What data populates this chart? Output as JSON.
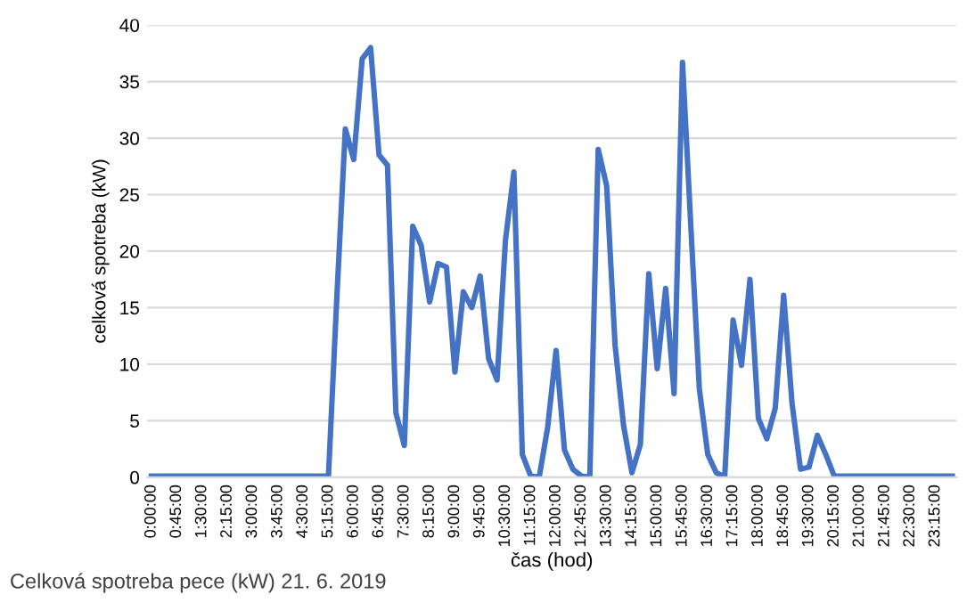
{
  "chart_data": {
    "type": "line",
    "ylabel": "celková spotreba (kW)",
    "xlabel": "čas (hod)",
    "annotations": [
      "Celková spotreba pece (kW) 21. 6. 2019"
    ],
    "categories": [
      "0:00:00",
      null,
      null,
      "0:45:00",
      null,
      null,
      "1:30:00",
      null,
      null,
      "2:15:00",
      null,
      null,
      "3:00:00",
      null,
      null,
      "3:45:00",
      null,
      null,
      "4:30:00",
      null,
      null,
      "5:15:00",
      null,
      null,
      "6:00:00",
      null,
      null,
      "6:45:00",
      null,
      null,
      "7:30:00",
      null,
      null,
      "8:15:00",
      null,
      null,
      "9:00:00",
      null,
      null,
      "9:45:00",
      null,
      null,
      "10:30:00",
      null,
      null,
      "11:15:00",
      null,
      null,
      "12:00:00",
      null,
      null,
      "12:45:00",
      null,
      null,
      "13:30:00",
      null,
      null,
      "14:15:00",
      null,
      null,
      "15:00:00",
      null,
      null,
      "15:45:00",
      null,
      null,
      "16:30:00",
      null,
      null,
      "17:15:00",
      null,
      null,
      "18:00:00",
      null,
      null,
      "18:45:00",
      null,
      null,
      "19:30:00",
      null,
      null,
      "20:15:00",
      null,
      null,
      "21:00:00",
      null,
      null,
      "21:45:00",
      null,
      null,
      "22:30:00",
      null,
      null,
      "23:15:00",
      null,
      null
    ],
    "series": [
      {
        "color": "#4472c4",
        "values": [
          0.1,
          0.1,
          0.1,
          0.1,
          0.1,
          0.1,
          0.1,
          0.1,
          0.1,
          0.1,
          0.1,
          0.1,
          0.1,
          0.1,
          0.1,
          0.1,
          0.1,
          0.1,
          0.1,
          0.1,
          0.1,
          0.1,
          16,
          30.8,
          28.1,
          37,
          38,
          28.5,
          27.6,
          5.7,
          2.8,
          22.2,
          20.5,
          15.5,
          18.9,
          18.6,
          9.3,
          16.4,
          15,
          17.8,
          10.5,
          8.6,
          21,
          27,
          2,
          0.1,
          0,
          4.4,
          11.2,
          2.4,
          0.7,
          0.1,
          0,
          29,
          25.8,
          11.7,
          4.6,
          0.4,
          2.9,
          18,
          9.6,
          16.7,
          7.4,
          36.7,
          22,
          7.8,
          2,
          0.4,
          0,
          13.9,
          9.9,
          17.5,
          5.2,
          3.4,
          6.1,
          16.1,
          6.5,
          0.7,
          0.9,
          3.7,
          2,
          0.1,
          0.1,
          0.1,
          0.1,
          0.1,
          0.1,
          0.1,
          0.1,
          0.1,
          0.1,
          0.1,
          0.1,
          0.1,
          0.1,
          0.1
        ]
      }
    ],
    "ylim": [
      0,
      40
    ],
    "yticks": [
      0,
      5,
      10,
      15,
      20,
      25,
      30,
      35,
      40
    ],
    "grid": "y",
    "marker": "none",
    "line_style": "solid"
  }
}
